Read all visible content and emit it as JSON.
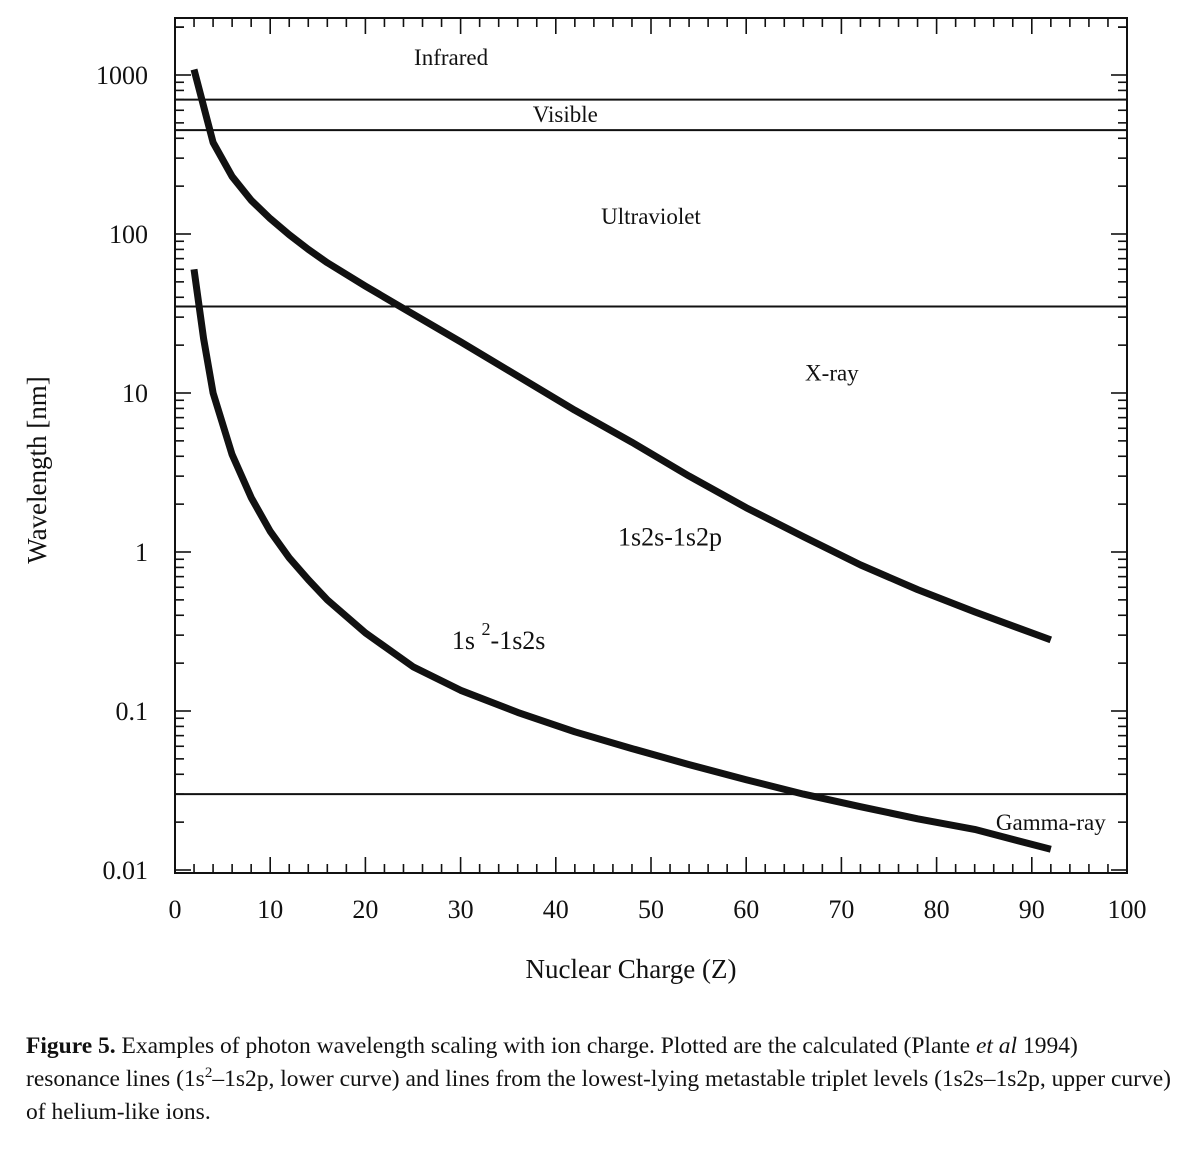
{
  "chart_data": {
    "type": "line",
    "xlabel": "Nuclear Charge (Z)",
    "ylabel": "Wavelength [nm]",
    "xlim": [
      0,
      100
    ],
    "ylim": [
      0.01,
      2000
    ],
    "yscale": "log",
    "grid": false,
    "x_ticks": [
      "0",
      "10",
      "20",
      "30",
      "40",
      "50",
      "60",
      "70",
      "80",
      "90",
      "100"
    ],
    "y_ticks": [
      {
        "value": 1000,
        "label": "1000"
      },
      {
        "value": 100,
        "label": "100"
      },
      {
        "value": 10,
        "label": "10"
      },
      {
        "value": 1,
        "label": "1"
      },
      {
        "value": 0.1,
        "label": "0.1"
      },
      {
        "value": 0.01,
        "label": "0.01"
      }
    ],
    "series": [
      {
        "name": "1s2s-1s2p",
        "x": [
          2,
          4,
          6,
          8,
          10,
          12,
          14,
          16,
          20,
          24,
          30,
          36,
          42,
          48,
          54,
          60,
          66,
          72,
          78,
          84,
          92
        ],
        "y": [
          1083,
          376,
          230,
          163,
          125,
          99,
          80,
          66,
          47,
          34,
          21,
          12.8,
          7.8,
          4.9,
          3.0,
          1.9,
          1.25,
          0.83,
          0.58,
          0.42,
          0.28
        ]
      },
      {
        "name": "1s 2-1s2s",
        "x": [
          2,
          3,
          4,
          6,
          8,
          10,
          12,
          14,
          16,
          20,
          25,
          30,
          36,
          42,
          48,
          54,
          60,
          66,
          72,
          78,
          84,
          92
        ],
        "y": [
          60,
          22,
          10,
          4.1,
          2.2,
          1.35,
          0.92,
          0.67,
          0.5,
          0.31,
          0.19,
          0.135,
          0.098,
          0.074,
          0.058,
          0.046,
          0.037,
          0.03,
          0.025,
          0.021,
          0.018,
          0.0135
        ]
      }
    ],
    "reference_lines": [
      {
        "y": 700
      },
      {
        "y": 450
      },
      {
        "y": 35
      },
      {
        "y": 0.03
      }
    ],
    "region_labels": [
      {
        "text": "Infrared",
        "x": 29,
        "y": 1300
      },
      {
        "text": "Visible",
        "x": 41,
        "y": 570
      },
      {
        "text": "Ultraviolet",
        "x": 50,
        "y": 130
      },
      {
        "text": "X-ray",
        "x": 69,
        "y": 13.5
      },
      {
        "text": "Gamma-ray",
        "x": 92,
        "y": 0.02
      }
    ],
    "curve_labels": [
      {
        "text": "1s2s-1s2p",
        "x": 52,
        "y": 1.25
      },
      {
        "text": "1s",
        "superscript": "2",
        "suffix": "-1s2s",
        "x": 34,
        "y": 0.28
      }
    ]
  },
  "caption": {
    "figure_number": "Figure 5.",
    "text_1": " Examples of photon wavelength scaling with ion charge.  Plotted are the calculated (Plante ",
    "italic": "et al",
    "text_2": " 1994) resonance lines (1s",
    "sup_1": "2",
    "text_3": "–1s2p, lower curve) and lines from the lowest-lying metastable triplet levels (1s2s–1s2p, upper curve) of helium-like ions."
  }
}
